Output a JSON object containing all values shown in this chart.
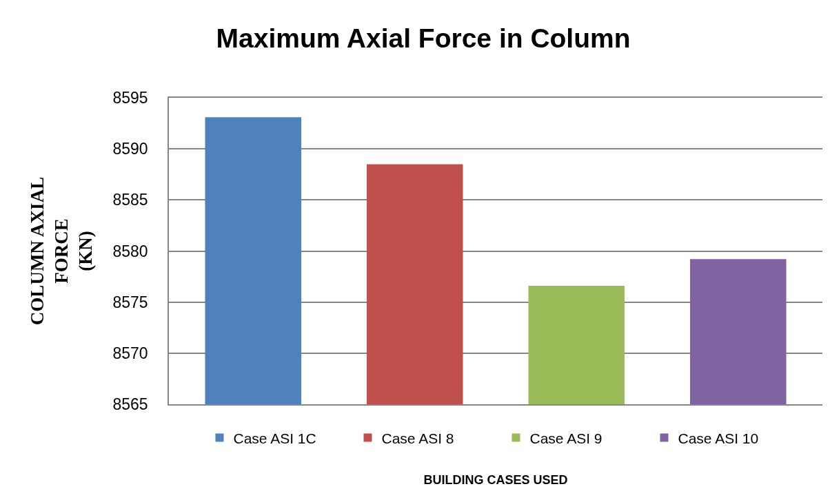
{
  "chart_data": {
    "type": "bar",
    "title": "Maximum Axial Force in Column",
    "xlabel": "BUILDING CASES USED",
    "ylabel": "COLUMN AXIAL\nFORCE\n(KN)",
    "categories": [
      null
    ],
    "series": [
      {
        "name": "Case ASI 1C",
        "color": "#4f81bd",
        "values": [
          8593.1
        ]
      },
      {
        "name": "Case ASI 8",
        "color": "#c0504d",
        "values": [
          8588.5
        ]
      },
      {
        "name": "Case ASI 9",
        "color": "#9bbb59",
        "values": [
          8576.6
        ]
      },
      {
        "name": "Case ASI 10",
        "color": "#8064a2",
        "values": [
          8579.2
        ]
      }
    ],
    "ylim": [
      8565,
      8595
    ],
    "yticks": [
      8565,
      8570,
      8575,
      8580,
      8585,
      8590,
      8595
    ],
    "grid": "y",
    "legend": "bottom"
  }
}
